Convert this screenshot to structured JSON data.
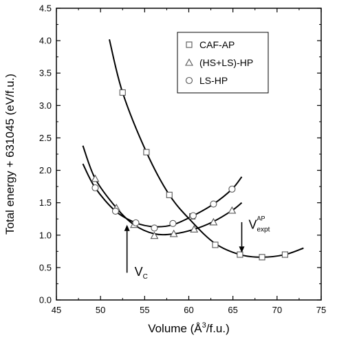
{
  "chart_data": {
    "type": "line",
    "xlabel_prefix": "Volume (",
    "xlabel_unit": "Å",
    "xlabel_sup": "3",
    "xlabel_suffix": "/f.u.)",
    "ylabel": "Total energy + 631045 (eV/f.u.)",
    "xlim": [
      45,
      75
    ],
    "ylim": [
      0.0,
      4.5
    ],
    "x_ticks": [
      "45",
      "50",
      "55",
      "60",
      "65",
      "70",
      "75"
    ],
    "y_ticks": [
      "0.0",
      "0.5",
      "1.0",
      "1.5",
      "2.0",
      "2.5",
      "3.0",
      "3.5",
      "4.0",
      "4.5"
    ],
    "legend_position": "top-right",
    "series": [
      {
        "name": "CAF-AP",
        "marker": "square",
        "points": [
          [
            52.5,
            3.2
          ],
          [
            55.2,
            2.28
          ],
          [
            57.8,
            1.62
          ],
          [
            60.4,
            1.29
          ],
          [
            63.0,
            0.85
          ],
          [
            65.8,
            0.7
          ],
          [
            68.3,
            0.66
          ],
          [
            70.9,
            0.7
          ]
        ],
        "curve": [
          [
            51.0,
            4.02
          ],
          [
            52.5,
            3.2
          ],
          [
            55.2,
            2.28
          ],
          [
            57.8,
            1.62
          ],
          [
            60.4,
            1.2
          ],
          [
            63.0,
            0.87
          ],
          [
            65.8,
            0.7
          ],
          [
            68.3,
            0.66
          ],
          [
            70.9,
            0.7
          ],
          [
            73.0,
            0.8
          ]
        ]
      },
      {
        "name": "(HS+LS)-HP",
        "marker": "triangle",
        "points": [
          [
            49.4,
            1.87
          ],
          [
            51.8,
            1.42
          ],
          [
            53.8,
            1.16
          ],
          [
            56.1,
            0.99
          ],
          [
            58.3,
            1.02
          ],
          [
            60.6,
            1.09
          ],
          [
            62.8,
            1.2
          ],
          [
            64.9,
            1.38
          ]
        ],
        "curve": [
          [
            48.0,
            2.38
          ],
          [
            49.4,
            1.87
          ],
          [
            51.8,
            1.42
          ],
          [
            53.8,
            1.16
          ],
          [
            56.1,
            1.02
          ],
          [
            58.3,
            1.02
          ],
          [
            60.6,
            1.09
          ],
          [
            62.8,
            1.21
          ],
          [
            64.9,
            1.38
          ],
          [
            66.0,
            1.5
          ]
        ]
      },
      {
        "name": "LS-HP",
        "marker": "circle",
        "points": [
          [
            49.4,
            1.73
          ],
          [
            51.7,
            1.37
          ],
          [
            54.0,
            1.19
          ],
          [
            56.1,
            1.11
          ],
          [
            58.2,
            1.18
          ],
          [
            60.5,
            1.3
          ],
          [
            62.8,
            1.48
          ],
          [
            64.9,
            1.71
          ]
        ],
        "curve": [
          [
            48.0,
            2.1
          ],
          [
            49.4,
            1.73
          ],
          [
            51.7,
            1.37
          ],
          [
            54.0,
            1.19
          ],
          [
            56.1,
            1.13
          ],
          [
            58.2,
            1.16
          ],
          [
            60.5,
            1.3
          ],
          [
            62.8,
            1.48
          ],
          [
            64.9,
            1.71
          ],
          [
            66.0,
            1.9
          ]
        ]
      }
    ],
    "annotations": [
      {
        "id": "vc",
        "main": "V",
        "sub": "C",
        "sup": "",
        "arrow_x": 53.0,
        "arrow_from_y": 0.42,
        "arrow_to_y": 1.16
      },
      {
        "id": "vexpt",
        "main": "V",
        "sub": "expt",
        "sup": "AP",
        "arrow_x": 66.0,
        "arrow_from_y": 1.2,
        "arrow_to_y": 0.73
      }
    ]
  }
}
